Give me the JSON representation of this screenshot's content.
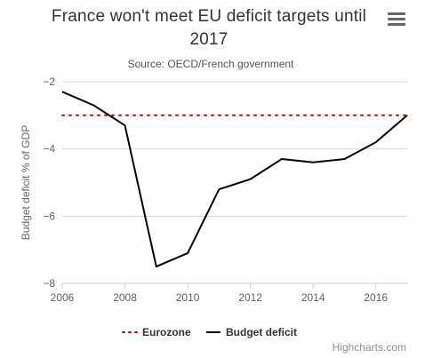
{
  "menu": {
    "icon": "hamburger-menu-icon"
  },
  "credit": "Highcharts.com",
  "chart_data": {
    "type": "line",
    "title": "France won't meet EU deficit targets until 2017",
    "title_lines": [
      "France won't meet EU deficit targets until",
      "2017"
    ],
    "subtitle": "Source: OECD/French government",
    "xlabel": "",
    "ylabel": "Budget deficit % of GDP",
    "xlim": [
      2006,
      2017
    ],
    "ylim": [
      -8,
      -2
    ],
    "x_ticks": [
      "2006",
      "2008",
      "2010",
      "2012",
      "2014",
      "2016"
    ],
    "y_ticks": [
      "−2",
      "−4",
      "−6",
      "−8"
    ],
    "x_tick_values": [
      2006,
      2008,
      2010,
      2012,
      2014,
      2016
    ],
    "y_tick_values": [
      -2,
      -4,
      -6,
      -8
    ],
    "grid": "horizontal",
    "legend_position": "bottom-center",
    "series": [
      {
        "name": "Eurozone",
        "style": "dotted",
        "color": "#cc0000",
        "x": [
          2006,
          2017
        ],
        "values": [
          -3,
          -3
        ]
      },
      {
        "name": "Budget deficit",
        "style": "solid",
        "color": "#000000",
        "x": [
          2006,
          2007,
          2008,
          2009,
          2010,
          2011,
          2012,
          2013,
          2014,
          2015,
          2016,
          2017
        ],
        "values": [
          -2.3,
          -2.7,
          -3.3,
          -7.5,
          -7.1,
          -5.2,
          -4.9,
          -4.3,
          -4.4,
          -4.3,
          -3.8,
          -3.0
        ]
      }
    ]
  }
}
